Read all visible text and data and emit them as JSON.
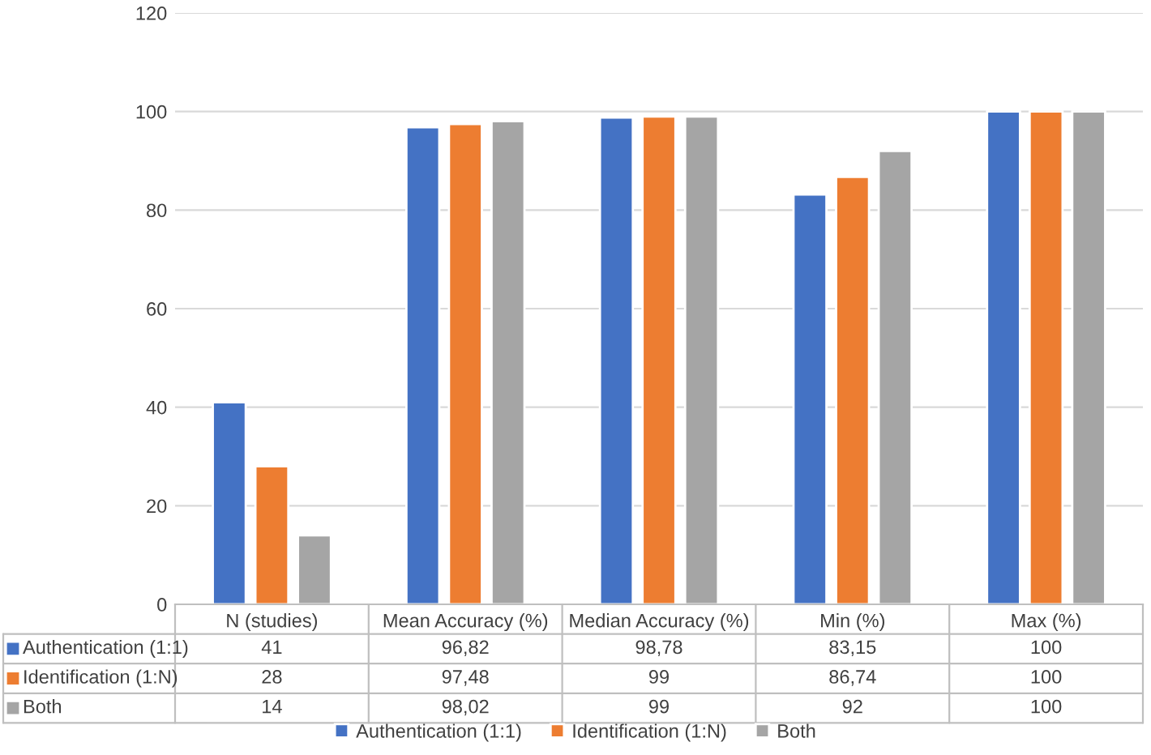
{
  "chart_data": {
    "type": "bar",
    "categories": [
      "N (studies)",
      "Mean Accuracy (%)",
      "Median Accuracy (%)",
      "Min (%)",
      "Max (%)"
    ],
    "series": [
      {
        "name": "Authentication (1:1)",
        "color": "#4472c4",
        "values": [
          41,
          96.82,
          98.78,
          83.15,
          100
        ],
        "value_labels": [
          "41",
          "96,82",
          "98,78",
          "83,15",
          "100"
        ]
      },
      {
        "name": "Identification (1:N)",
        "color": "#ed7d31",
        "values": [
          28,
          97.48,
          99,
          86.74,
          100
        ],
        "value_labels": [
          "28",
          "97,48",
          "99",
          "86,74",
          "100"
        ]
      },
      {
        "name": "Both",
        "color": "#a5a5a5",
        "values": [
          14,
          98.02,
          99,
          92,
          100
        ],
        "value_labels": [
          "14",
          "98,02",
          "99",
          "92",
          "100"
        ]
      }
    ],
    "ylim": [
      0,
      120
    ],
    "yticks": [
      0,
      20,
      40,
      60,
      80,
      100,
      120
    ],
    "grid": "y",
    "legend": "bottom"
  }
}
